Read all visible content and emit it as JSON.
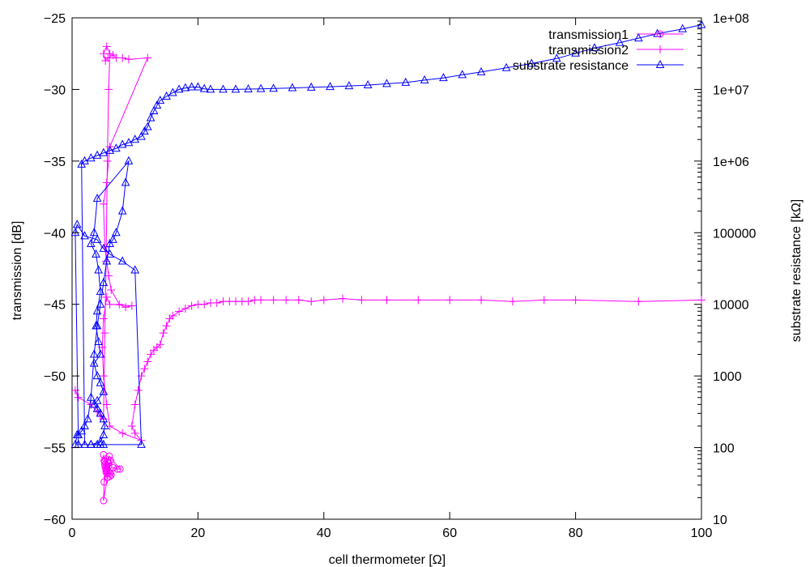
{
  "chart_data": {
    "type": "line",
    "xlabel": "cell thermometer [Ω]",
    "ylabel": "transmission [dB]",
    "y2label": "substrate resistance [kΩ]",
    "xlim": [
      0,
      100
    ],
    "ylim": [
      -60,
      -25
    ],
    "y2lim": [
      10,
      100000000
    ],
    "y2scale": "log",
    "grid": false,
    "legend_position": "top-right",
    "x_ticks": [
      0,
      20,
      40,
      60,
      80,
      100
    ],
    "y_ticks": [
      -60,
      -55,
      -50,
      -45,
      -40,
      -35,
      -30,
      -25
    ],
    "y2_ticks": [
      10,
      100,
      1000,
      10000,
      100000,
      1000000,
      10000000,
      100000000
    ],
    "x_tick_labels": [
      "0",
      "20",
      "40",
      "60",
      "80",
      "100"
    ],
    "y_tick_labels": [
      "−60",
      "−55",
      "−50",
      "−45",
      "−40",
      "−35",
      "−30",
      "−25"
    ],
    "y2_tick_labels": [
      "10",
      "100",
      "1000",
      "10000",
      "100000",
      "1e+06",
      "1e+07",
      "1e+08"
    ],
    "series": [
      {
        "name": "transmission1",
        "axis": "left",
        "color": "#ff00ff",
        "marker": "circle",
        "x": [
          5.0,
          5.2,
          5.4,
          5.6,
          5.8,
          6.0,
          5.7,
          5.3,
          5.1,
          5.5,
          6.2,
          6.5,
          7.2,
          7.6,
          5.9,
          5.2,
          5.0,
          5.6,
          6.1,
          5.4,
          5.8,
          5.3,
          6.0,
          5.1,
          5.5
        ],
        "y": [
          -55.5,
          -56.0,
          -56.5,
          -56.8,
          -56.3,
          -57.0,
          -56.0,
          -55.8,
          -57.4,
          -56.6,
          -56.9,
          -56.4,
          -56.5,
          -56.5,
          -55.6,
          -56.2,
          -58.7,
          -57.1,
          -55.9,
          -56.7,
          -56.1,
          -56.4,
          -56.8,
          -55.9,
          -56.3
        ]
      },
      {
        "name": "transmission2",
        "axis": "left",
        "color": "#ff00ff",
        "marker": "plus",
        "x": [
          0.5,
          1.0,
          3.0,
          4.0,
          4.5,
          5.0,
          5.2,
          5.4,
          5.6,
          5.8,
          6.0,
          5.5,
          5.0,
          5.3,
          5.7,
          6.5,
          7.0,
          8.0,
          9.0,
          12.0,
          6.0,
          5.5,
          5.0,
          5.2,
          5.8,
          6.2,
          7.5,
          8.5,
          9.5,
          6.0,
          5.5,
          5.0,
          4.8,
          5.0,
          5.5,
          6.0,
          8.0,
          11.0,
          10.0,
          9.5,
          10.0,
          10.5,
          11.0,
          11.5,
          12.0,
          12.5,
          13.0,
          13.5,
          14.0,
          14.5,
          15.0,
          15.5,
          16.0,
          17.0,
          18.0,
          19.0,
          20.0,
          21.0,
          22.0,
          23.0,
          24.0,
          25.0,
          26.0,
          27.0,
          28.0,
          29.0,
          30.0,
          32.0,
          34.0,
          36.0,
          38.0,
          40.0,
          43.0,
          46.0,
          50.0,
          55.0,
          60.0,
          65.0,
          70.0,
          75.0,
          80.0,
          90.0,
          100.0
        ],
        "y": [
          -51.0,
          -51.5,
          -52.0,
          -52.5,
          -52.8,
          -53.0,
          -47.0,
          -42.0,
          -35.0,
          -30.0,
          -27.5,
          -27.0,
          -27.5,
          -28.0,
          -27.8,
          -27.6,
          -27.8,
          -27.8,
          -27.9,
          -27.8,
          -34.0,
          -36.5,
          -38.0,
          -41.0,
          -43.0,
          -44.0,
          -45.0,
          -45.2,
          -45.1,
          -45.0,
          -44.5,
          -46.0,
          -48.0,
          -50.0,
          -52.0,
          -53.5,
          -54.0,
          -54.5,
          -54.0,
          -53.5,
          -52.0,
          -51.0,
          -50.0,
          -49.5,
          -49.0,
          -48.5,
          -48.2,
          -48.0,
          -47.8,
          -47.0,
          -46.5,
          -46.0,
          -45.8,
          -45.5,
          -45.3,
          -45.1,
          -45.0,
          -45.0,
          -44.9,
          -44.9,
          -44.8,
          -44.8,
          -44.8,
          -44.8,
          -44.8,
          -44.7,
          -44.7,
          -44.7,
          -44.7,
          -44.7,
          -44.8,
          -44.7,
          -44.6,
          -44.7,
          -44.7,
          -44.7,
          -44.7,
          -44.7,
          -44.8,
          -44.7,
          -44.7,
          -44.8,
          -44.7
        ]
      },
      {
        "name": "substrate resistance",
        "axis": "right",
        "color": "#0000ff",
        "marker": "triangle",
        "x": [
          0.5,
          0.8,
          1.0,
          1.5,
          2.0,
          2.5,
          3.0,
          3.5,
          4.0,
          4.5,
          5.0,
          5.5,
          6.0,
          6.5,
          7.0,
          8.0,
          8.5,
          9.0,
          4.0,
          3.5,
          3.0,
          3.8,
          4.2,
          4.5,
          4.0,
          3.8,
          4.2,
          4.5,
          3.5,
          4.0,
          4.5,
          5.0,
          4.0,
          3.5,
          4.0,
          4.5,
          5.0,
          5.2,
          5.0,
          4.5,
          3.0,
          1.0,
          0.5,
          0.8,
          2.0,
          4.0,
          5.0,
          6.0,
          8.0,
          10.0,
          11.0,
          5.0,
          4.5,
          4.0,
          3.0,
          2.0,
          1.5,
          2.0,
          3.0,
          4.0,
          5.0,
          6.0,
          7.0,
          8.0,
          9.0,
          10.0,
          11.0,
          11.5,
          12.0,
          12.5,
          13.0,
          13.5,
          14.0,
          15.0,
          16.0,
          17.0,
          18.0,
          19.0,
          20.0,
          21.0,
          22.0,
          24.0,
          26.0,
          28.0,
          30.0,
          32.0,
          35.0,
          38.0,
          41.0,
          44.0,
          47.0,
          50.0,
          53.0,
          56.0,
          59.0,
          62.0,
          65.0,
          69.0,
          73.0,
          77.0,
          80.0,
          83.0,
          87.0,
          90.0,
          93.0,
          97.0,
          100.0
        ],
        "y": [
          110,
          150,
          150,
          170,
          200,
          250,
          500,
          2000,
          5000,
          10000,
          20000,
          40000,
          70000,
          80000,
          100000,
          200000,
          500000,
          1000000,
          300000,
          100000,
          70000,
          50000,
          30000,
          15000,
          8000,
          5000,
          3000,
          2000,
          1500,
          1000,
          800,
          600,
          450,
          400,
          350,
          300,
          250,
          200,
          150,
          120,
          110,
          110,
          100000,
          130000,
          90000,
          80000,
          60000,
          50000,
          40000,
          30000,
          110,
          110,
          110,
          110,
          110,
          110,
          900000,
          1000000,
          1100000,
          1200000,
          1300000,
          1400000,
          1500000,
          1700000,
          1800000,
          2000000,
          2200000,
          2600000,
          3000000,
          4000000,
          5000000,
          6000000,
          7000000,
          8000000,
          9000000,
          10000000,
          10500000,
          10800000,
          10800000,
          10200000,
          10000000,
          10000000,
          10000000,
          10100000,
          10200000,
          10300000,
          10500000,
          10700000,
          10900000,
          11200000,
          11500000,
          12000000,
          12500000,
          13500000,
          14500000,
          16000000,
          17500000,
          20000000,
          23000000,
          27000000,
          32000000,
          38000000,
          45000000,
          52000000,
          60000000,
          70000000,
          80000000
        ]
      }
    ]
  }
}
